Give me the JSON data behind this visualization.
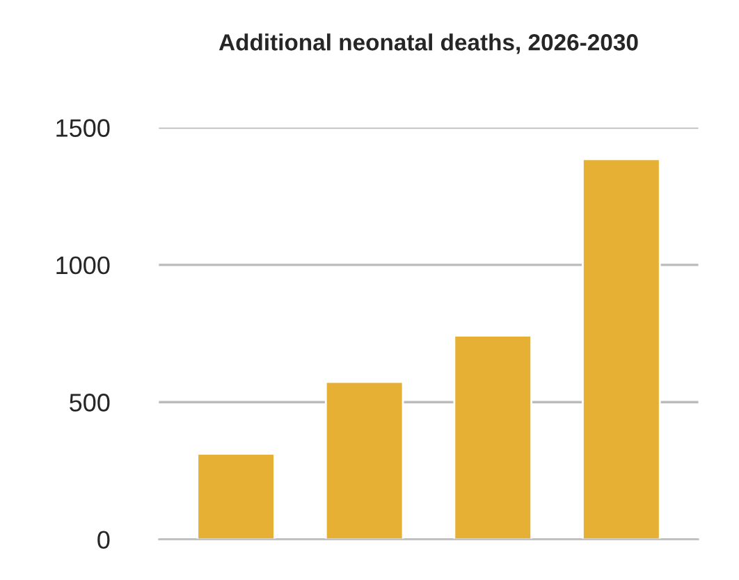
{
  "chart_data": {
    "type": "bar",
    "title": "Additional neonatal deaths, 2026-2030",
    "categories": [
      null,
      null,
      null,
      null
    ],
    "values": [
      312,
      574,
      742,
      1385
    ],
    "color": "#e6b035",
    "ylim": [
      0,
      1500
    ],
    "yticks": [
      0,
      500,
      1000,
      1500
    ],
    "grid": "y"
  }
}
